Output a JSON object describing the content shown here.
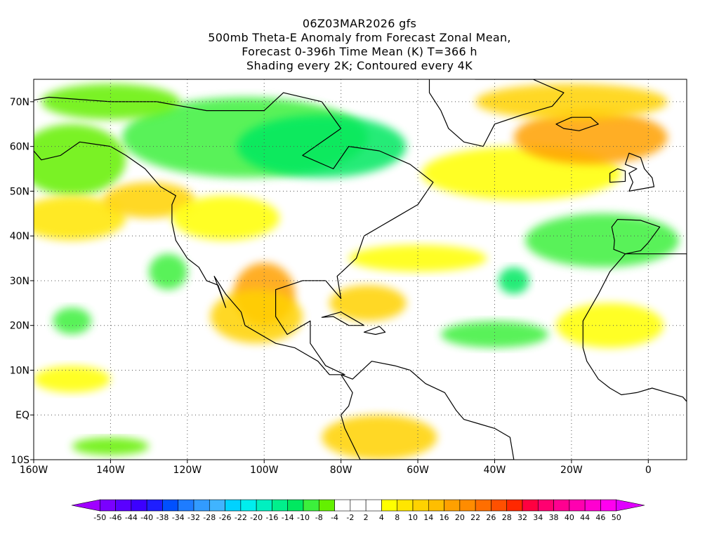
{
  "title": {
    "line1": "06Z03MAR2026 gfs",
    "line2": "500mb Theta-E Anomaly from Forecast Zonal Mean,",
    "line3": "Forecast 0-396h Time Mean (K) T=366 h",
    "line4": "Shading every 2K; Contoured every 4K"
  },
  "map": {
    "lon_range": [
      -160,
      10
    ],
    "lat_range": [
      -10,
      75
    ],
    "lat_ticks": [
      {
        "value": 70,
        "label": "70N"
      },
      {
        "value": 60,
        "label": "60N"
      },
      {
        "value": 50,
        "label": "50N"
      },
      {
        "value": 40,
        "label": "40N"
      },
      {
        "value": 30,
        "label": "30N"
      },
      {
        "value": 20,
        "label": "20N"
      },
      {
        "value": 10,
        "label": "10N"
      },
      {
        "value": 0,
        "label": "EQ"
      },
      {
        "value": -10,
        "label": "10S"
      }
    ],
    "lon_ticks": [
      {
        "value": -160,
        "label": "160W"
      },
      {
        "value": -140,
        "label": "140W"
      },
      {
        "value": -120,
        "label": "120W"
      },
      {
        "value": -100,
        "label": "100W"
      },
      {
        "value": -80,
        "label": "80W"
      },
      {
        "value": -60,
        "label": "60W"
      },
      {
        "value": -40,
        "label": "40W"
      },
      {
        "value": -20,
        "label": "20W"
      },
      {
        "value": 0,
        "label": "0"
      }
    ]
  },
  "colorbar": {
    "colors": [
      "#a000ff",
      "#7a00ff",
      "#5a00ff",
      "#3c00ff",
      "#1e1eff",
      "#0050ff",
      "#1e7cff",
      "#329bff",
      "#40b4ff",
      "#00d2ff",
      "#00eeee",
      "#00f0c0",
      "#00f08c",
      "#00e860",
      "#3cf03c",
      "#64f000",
      "#ffffff",
      "#ffffff",
      "#ffffff",
      "#ffff00",
      "#ffe600",
      "#ffd200",
      "#ffbe00",
      "#ffa000",
      "#ff8c00",
      "#ff6e00",
      "#ff5000",
      "#ff2800",
      "#ff0040",
      "#ff0070",
      "#ff0090",
      "#ff00b0",
      "#ff00d0",
      "#ff00f0",
      "#e000ff"
    ],
    "labels": [
      "-50",
      "-46",
      "-44",
      "-40",
      "-38",
      "-34",
      "-32",
      "-28",
      "-26",
      "-22",
      "-20",
      "-16",
      "-14",
      "-10",
      "-8",
      "-4",
      "-2",
      "2",
      "4",
      "8",
      "10",
      "14",
      "16",
      "20",
      "22",
      "26",
      "28",
      "32",
      "34",
      "38",
      "40",
      "44",
      "46",
      "50"
    ]
  },
  "field": {
    "blobs": [
      {
        "lon": -105,
        "lat": 62,
        "rx": 32,
        "ry": 9,
        "color": "#3cf03c"
      },
      {
        "lon": -85,
        "lat": 60,
        "rx": 22,
        "ry": 7,
        "color": "#00e860"
      },
      {
        "lon": -150,
        "lat": 57,
        "rx": 14,
        "ry": 8,
        "color": "#64f000"
      },
      {
        "lon": -140,
        "lat": 70,
        "rx": 18,
        "ry": 4,
        "color": "#64f000"
      },
      {
        "lon": -150,
        "lat": 44,
        "rx": 14,
        "ry": 5,
        "color": "#ffe600"
      },
      {
        "lon": -130,
        "lat": 48,
        "rx": 12,
        "ry": 4,
        "color": "#ffd200"
      },
      {
        "lon": -110,
        "lat": 44,
        "rx": 14,
        "ry": 5,
        "color": "#ffff00"
      },
      {
        "lon": -125,
        "lat": 32,
        "rx": 5,
        "ry": 4,
        "color": "#3cf03c"
      },
      {
        "lon": -100,
        "lat": 27,
        "rx": 8,
        "ry": 7,
        "color": "#ffa000"
      },
      {
        "lon": -102,
        "lat": 22,
        "rx": 12,
        "ry": 6,
        "color": "#ffd200"
      },
      {
        "lon": -73,
        "lat": 25,
        "rx": 10,
        "ry": 4,
        "color": "#ffd200"
      },
      {
        "lon": -60,
        "lat": 35,
        "rx": 18,
        "ry": 3,
        "color": "#ffff00"
      },
      {
        "lon": -33,
        "lat": 54,
        "rx": 26,
        "ry": 6,
        "color": "#ffff00"
      },
      {
        "lon": -15,
        "lat": 62,
        "rx": 20,
        "ry": 6,
        "color": "#ffa000"
      },
      {
        "lon": -20,
        "lat": 70,
        "rx": 25,
        "ry": 4,
        "color": "#ffd200"
      },
      {
        "lon": -12,
        "lat": 39,
        "rx": 20,
        "ry": 6,
        "color": "#3cf03c"
      },
      {
        "lon": -35,
        "lat": 30,
        "rx": 4,
        "ry": 3,
        "color": "#00e860"
      },
      {
        "lon": -40,
        "lat": 18,
        "rx": 14,
        "ry": 3,
        "color": "#3cf03c"
      },
      {
        "lon": -150,
        "lat": 21,
        "rx": 5,
        "ry": 3,
        "color": "#3cf03c"
      },
      {
        "lon": -70,
        "lat": -5,
        "rx": 15,
        "ry": 5,
        "color": "#ffd200"
      },
      {
        "lon": -140,
        "lat": -7,
        "rx": 10,
        "ry": 2,
        "color": "#64f000"
      },
      {
        "lon": -10,
        "lat": 20,
        "rx": 14,
        "ry": 5,
        "color": "#ffff00"
      },
      {
        "lon": -150,
        "lat": 8,
        "rx": 10,
        "ry": 3,
        "color": "#ffff00"
      }
    ]
  }
}
